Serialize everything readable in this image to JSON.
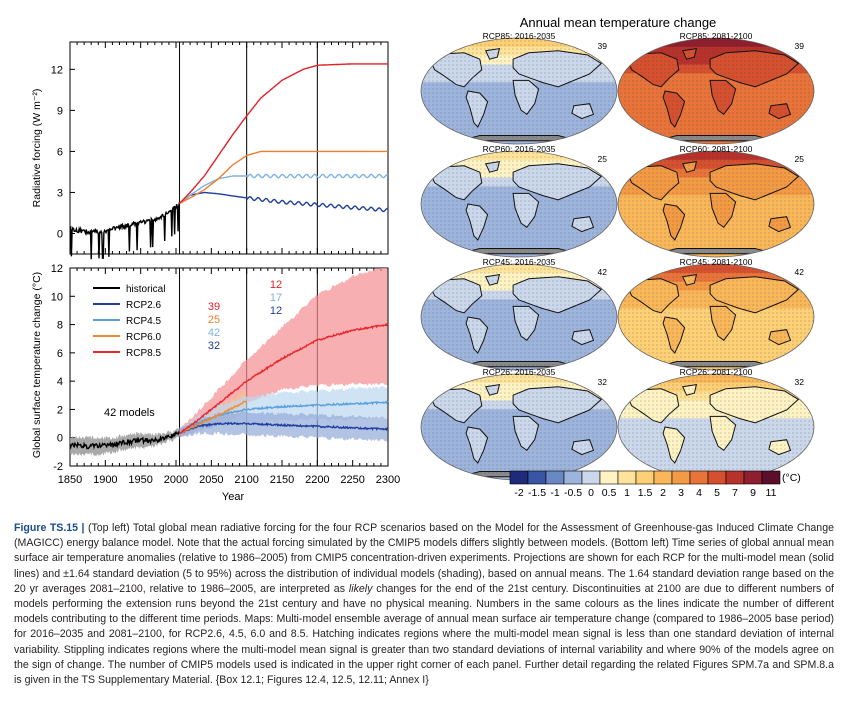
{
  "forcing_chart": {
    "ylabel": "Radiative  forcing (W m⁻²)",
    "yticks": [
      0,
      3,
      6,
      9,
      12
    ]
  },
  "temperature_chart": {
    "ylabel": "Global surface temperature change (°C)",
    "xlabel": "Year",
    "yticks": [
      -2,
      0,
      2,
      4,
      6,
      8,
      10,
      12
    ],
    "xticks": [
      1850,
      1900,
      1950,
      2000,
      2050,
      2100,
      2150,
      2200,
      2250,
      2300
    ],
    "models_label": "42 models"
  },
  "chart_data": [
    {
      "type": "line",
      "xlim": [
        1850,
        2300
      ],
      "ylim": [
        -1.5,
        14
      ],
      "series": [
        {
          "name": "historical",
          "color": "#000000",
          "x": [
            1850,
            1880,
            1900,
            1920,
            1950,
            1970,
            1990,
            2005
          ],
          "y": [
            0.3,
            0.1,
            0.2,
            0.5,
            0.8,
            1.0,
            1.6,
            2.2
          ]
        },
        {
          "name": "RCP2.6",
          "color": "#1f3f9a",
          "x": [
            2005,
            2020,
            2040,
            2060,
            2100,
            2150,
            2200,
            2250,
            2300
          ],
          "y": [
            2.2,
            2.8,
            3.0,
            2.9,
            2.6,
            2.3,
            2.1,
            1.9,
            1.7
          ]
        },
        {
          "name": "RCP4.5",
          "color": "#7fb2e0",
          "x": [
            2005,
            2020,
            2040,
            2060,
            2080,
            2100,
            2150,
            2200,
            2250,
            2300
          ],
          "y": [
            2.2,
            2.8,
            3.5,
            4.0,
            4.2,
            4.2,
            4.2,
            4.2,
            4.2,
            4.2
          ]
        },
        {
          "name": "RCP6.0",
          "color": "#ef7d2e",
          "x": [
            2005,
            2020,
            2040,
            2060,
            2080,
            2100,
            2120,
            2150,
            2200,
            2300
          ],
          "y": [
            2.2,
            2.6,
            3.2,
            4.0,
            5.0,
            5.7,
            6.0,
            6.0,
            6.0,
            6.0
          ]
        },
        {
          "name": "RCP8.5",
          "color": "#e41f26",
          "x": [
            2005,
            2020,
            2040,
            2060,
            2080,
            2100,
            2120,
            2150,
            2180,
            2200,
            2250,
            2300
          ],
          "y": [
            2.2,
            3.0,
            4.2,
            5.7,
            7.2,
            8.6,
            9.9,
            11.2,
            12.0,
            12.3,
            12.4,
            12.4
          ]
        }
      ]
    },
    {
      "type": "line",
      "xlim": [
        1850,
        2300
      ],
      "ylim": [
        -2,
        12
      ],
      "legend": "top-left",
      "series": [
        {
          "name": "historical",
          "color": "#000000",
          "x": [
            1850,
            1870,
            1890,
            1910,
            1930,
            1950,
            1970,
            1990,
            2005
          ],
          "y": [
            -0.5,
            -0.6,
            -0.6,
            -0.5,
            -0.3,
            -0.2,
            -0.2,
            0.1,
            0.3
          ],
          "sd": [
            0.6,
            0.6,
            0.6,
            0.5,
            0.5,
            0.5,
            0.4,
            0.3,
            0.3
          ]
        },
        {
          "name": "RCP2.6",
          "color": "#2040a0",
          "x": [
            2005,
            2030,
            2060,
            2100,
            2150,
            2200,
            2250,
            2300
          ],
          "y": [
            0.3,
            0.8,
            1.0,
            1.0,
            0.9,
            0.8,
            0.7,
            0.6
          ],
          "sd": [
            0.3,
            0.5,
            0.7,
            0.8,
            0.8,
            0.8,
            0.8,
            0.8
          ]
        },
        {
          "name": "RCP4.5",
          "color": "#5aa0dc",
          "x": [
            2005,
            2030,
            2060,
            2100,
            2150,
            2200,
            2250,
            2300
          ],
          "y": [
            0.3,
            1.0,
            1.6,
            2.0,
            2.2,
            2.3,
            2.4,
            2.5
          ],
          "sd": [
            0.3,
            0.5,
            0.7,
            0.9,
            1.0,
            1.0,
            1.1,
            1.1
          ]
        },
        {
          "name": "RCP6.0",
          "color": "#f08a30",
          "x": [
            2005,
            2030,
            2060,
            2100
          ],
          "y": [
            0.3,
            0.9,
            1.6,
            2.6
          ],
          "sd": [
            0.3,
            0.4,
            0.6,
            0.8
          ]
        },
        {
          "name": "RCP8.5",
          "color": "#e8282e",
          "x": [
            2005,
            2030,
            2060,
            2100,
            2150,
            2200,
            2250,
            2300
          ],
          "y": [
            0.3,
            1.2,
            2.4,
            4.0,
            5.6,
            6.9,
            7.6,
            8.0
          ],
          "sd": [
            0.3,
            0.6,
            1.0,
            1.5,
            2.2,
            3.2,
            3.8,
            4.2
          ]
        }
      ],
      "model_counts": [
        {
          "period": "2006-2100",
          "values": [
            {
              "text": "39",
              "color": "#e41f26"
            },
            {
              "text": "25",
              "color": "#ef7d2e"
            },
            {
              "text": "42",
              "color": "#7fb2e0"
            },
            {
              "text": "32",
              "color": "#1f3f9a"
            }
          ]
        },
        {
          "period": "2101-2200",
          "values": [
            {
              "text": "12",
              "color": "#e41f26"
            },
            {
              "text": "17",
              "color": "#7fb2e0"
            },
            {
              "text": "12",
              "color": "#1f3f9a"
            }
          ]
        }
      ]
    },
    {
      "type": "heatmap",
      "title": "Annual mean temperature change",
      "colorbar": {
        "unit": "(°C)",
        "ticks": [
          "-2",
          "-1.5",
          "-1",
          "-0.5",
          "0",
          "0.5",
          "1",
          "1.5",
          "2",
          "3",
          "4",
          "5",
          "7",
          "9",
          "11"
        ],
        "colors": [
          "#1f2a7a",
          "#3a55a5",
          "#6a88c6",
          "#9db4dc",
          "#cbd8ec",
          "#fff3c4",
          "#ffe39a",
          "#fdd075",
          "#f9b75a",
          "#f39a45",
          "#e8743a",
          "#d4502f",
          "#b8322c",
          "#8f1f2e",
          "#5b0f2b"
        ]
      },
      "panels": [
        {
          "label": "RCP85: 2016-2035",
          "models": "39",
          "base": 3,
          "arctic": 7
        },
        {
          "label": "RCP85: 2081-2100",
          "models": "39",
          "base": 10,
          "arctic": 13
        },
        {
          "label": "RCP60: 2016-2035",
          "models": "25",
          "base": 3,
          "arctic": 6
        },
        {
          "label": "RCP60: 2081-2100",
          "models": "25",
          "base": 8,
          "arctic": 12
        },
        {
          "label": "RCP45: 2016-2035",
          "models": "42",
          "base": 3,
          "arctic": 6
        },
        {
          "label": "RCP45: 2081-2100",
          "models": "42",
          "base": 7,
          "arctic": 11
        },
        {
          "label": "RCP26: 2016-2035",
          "models": "32",
          "base": 3,
          "arctic": 6
        },
        {
          "label": "RCP26: 2081-2100",
          "models": "32",
          "base": 4,
          "arctic": 8
        }
      ]
    }
  ],
  "caption": {
    "label": "Figure TS.15 |",
    "p1": " (Top left) Total global mean radiative forcing for the four RCP scenarios based on the Model for the Assessment of Greenhouse-gas Induced Climate Change (MAGICC) energy balance model. Note that the actual forcing simulated by the CMIP5 models differs slightly between models. (Bottom left) Time series of global annual mean surface air temperature anomalies (relative to 1986–2005) from CMIP5 concentration-driven experiments. Projections are shown for each RCP for the multi-model mean (solid lines) and ±1.64 standard deviation (5 to 95%) across the distribution of individual models (shading), based on annual means. The 1.64 standard deviation range based on the 20 yr averages 2081–2100, relative to 1986–2005, are interpreted as ",
    "likely": "likely",
    "p2": " changes for the end of the 21st century. Discontinuities at 2100 are due to different numbers of models performing the extension runs beyond the 21st century and have no physical meaning. Numbers in the same colours as the lines indicate the number of different models contributing to the different time periods. Maps: Multi-model ensemble average of annual mean surface air temperature change (compared to 1986–2005 base period) for 2016–2035 and 2081–2100, for RCP2.6, 4.5, 6.0 and 8.5. Hatching indicates regions where the multi-model mean signal is less than one standard deviation of internal variability. Stippling indicates regions where the multi-model mean signal is greater than two standard deviations of internal variability and where 90% of the models agree on the sign of change. The number of CMIP5 models used is indicated in the upper right corner of each panel. Further detail regarding the related Figures SPM.7a and SPM.8.a is given in the TS Supplementary Material. {Box 12.1; Figures 12.4, 12.5, 12.11; Annex I}"
  }
}
